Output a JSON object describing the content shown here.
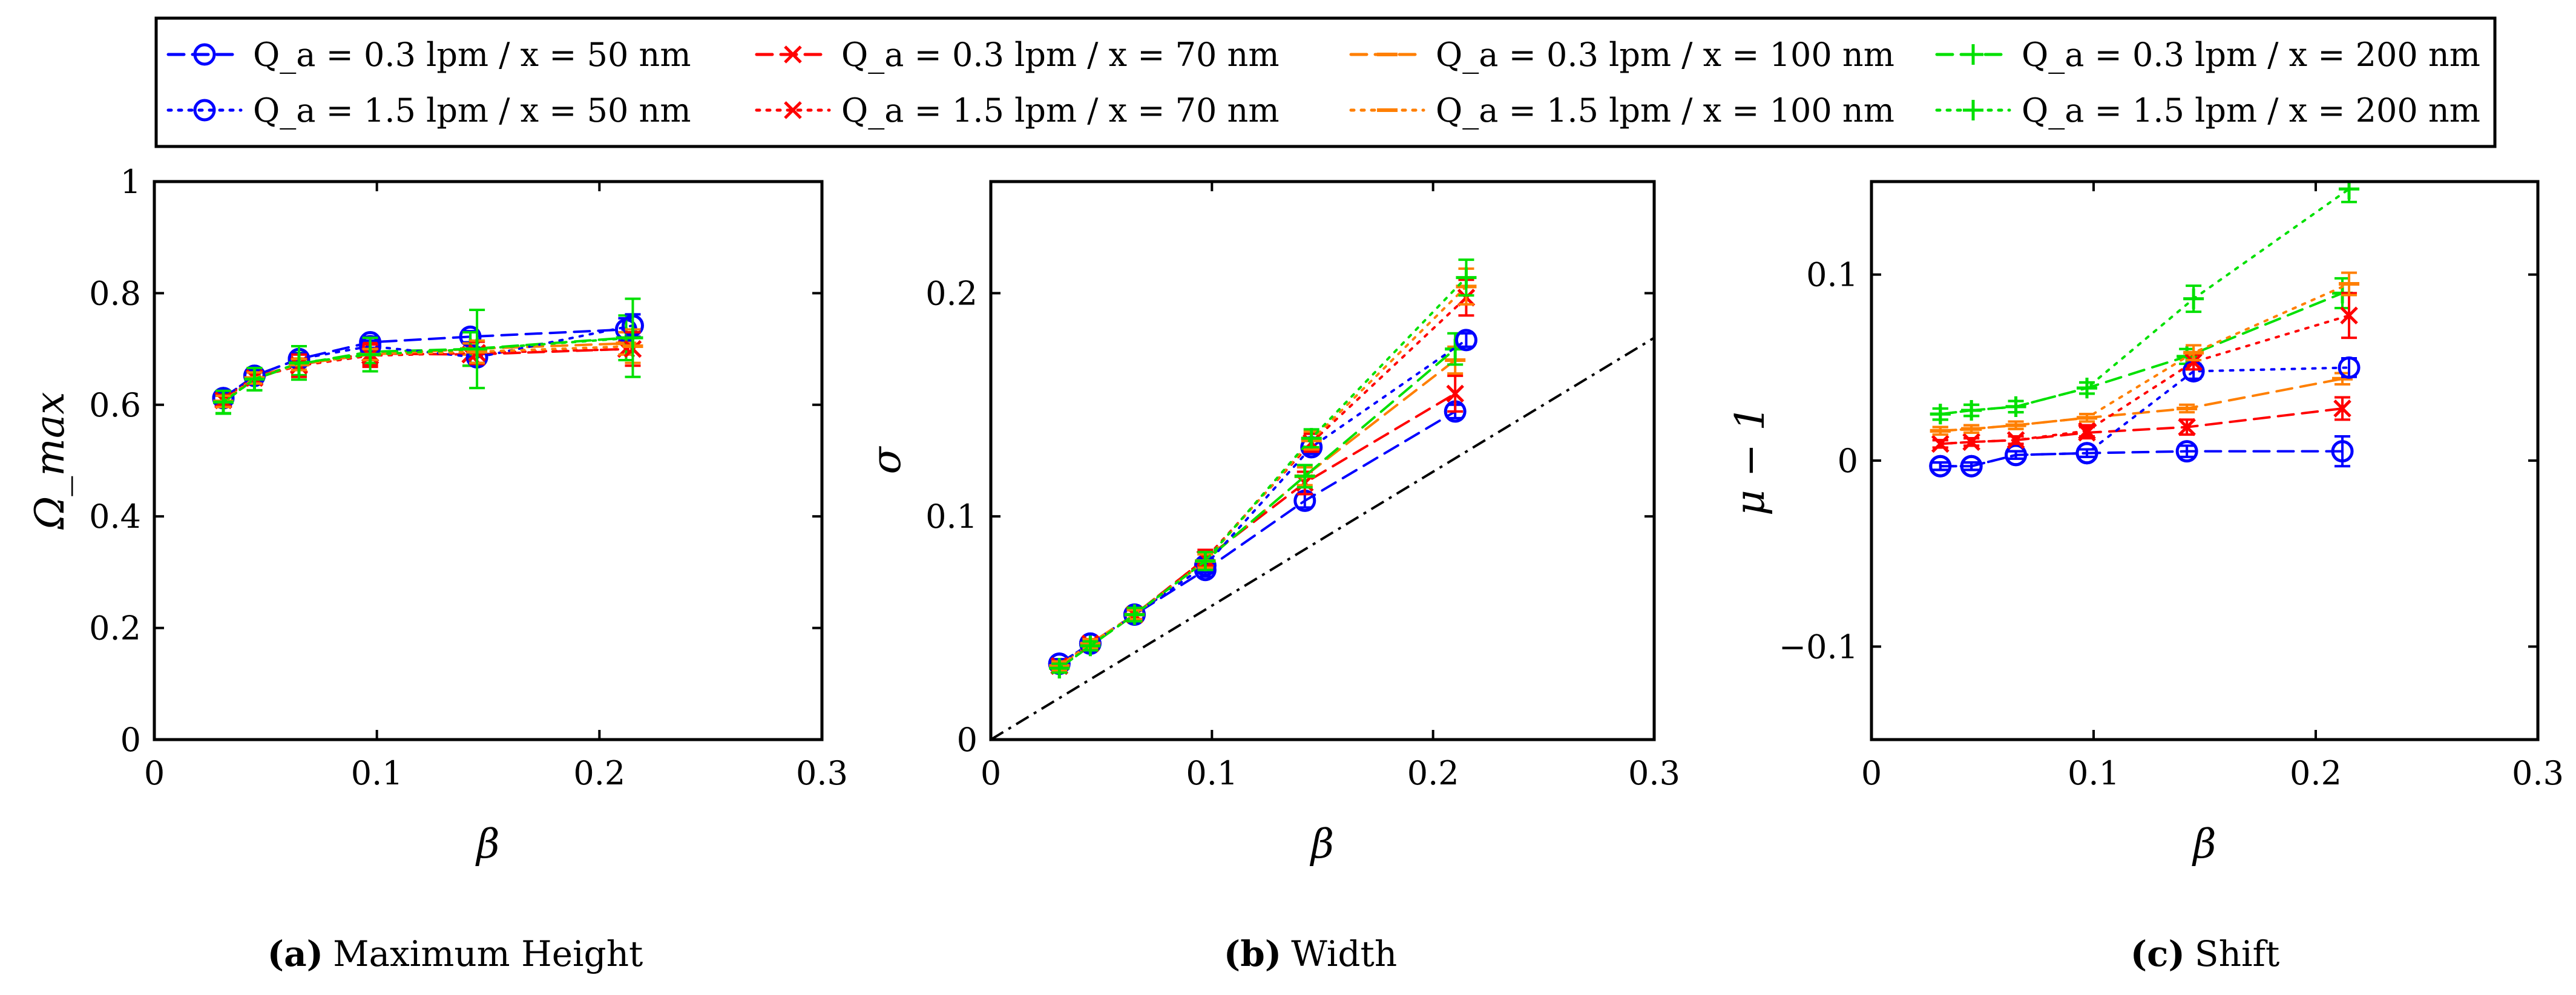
{
  "legend": {
    "entries": [
      {
        "label": "Q_a = 0.3 lpm / x = 50 nm",
        "color": "#0000ff",
        "style": "dashed",
        "marker": "circle"
      },
      {
        "label": "Q_a = 0.3 lpm / x = 70 nm",
        "color": "#ff0000",
        "style": "dashed",
        "marker": "cross"
      },
      {
        "label": "Q_a = 0.3 lpm / x = 100 nm",
        "color": "#ff7f00",
        "style": "dashed",
        "marker": "dash"
      },
      {
        "label": "Q_a = 0.3 lpm / x = 200 nm",
        "color": "#00e000",
        "style": "dashed",
        "marker": "plus"
      },
      {
        "label": "Q_a = 1.5 lpm / x = 50 nm",
        "color": "#0000ff",
        "style": "dotted",
        "marker": "circle"
      },
      {
        "label": "Q_a = 1.5 lpm / x = 70 nm",
        "color": "#ff0000",
        "style": "dotted",
        "marker": "cross"
      },
      {
        "label": "Q_a = 1.5 lpm / x = 100 nm",
        "color": "#ff7f00",
        "style": "dotted",
        "marker": "dash"
      },
      {
        "label": "Q_a = 1.5 lpm / x = 200 nm",
        "color": "#00e000",
        "style": "dotted",
        "marker": "plus"
      }
    ]
  },
  "chart_data": [
    {
      "type": "line",
      "caption_letter": "(a)",
      "caption_text": "Maximum Height",
      "xlabel": "β",
      "ylabel": "Ω_max",
      "xlim": [
        0,
        0.3
      ],
      "ylim": [
        0,
        1
      ],
      "xticks": [
        "0",
        "0.1",
        "0.2",
        "0.3"
      ],
      "xtick_values": [
        0,
        0.1,
        0.2,
        0.3
      ],
      "yticks": [
        "0",
        "0.2",
        "0.4",
        "0.6",
        "0.8",
        "1"
      ],
      "ytick_values": [
        0,
        0.2,
        0.4,
        0.6,
        0.8,
        1
      ],
      "series": [
        {
          "name": "Q_a = 0.3 lpm / x = 50 nm",
          "x": [
            0.031,
            0.045,
            0.065,
            0.097,
            0.142,
            0.212
          ],
          "y": [
            0.612,
            0.652,
            0.682,
            0.712,
            0.722,
            0.735
          ],
          "err": [
            0.01,
            0.01,
            0.01,
            0.01,
            0.01,
            0.02
          ]
        },
        {
          "name": "Q_a = 0.3 lpm / x = 70 nm",
          "x": [
            0.031,
            0.045,
            0.065,
            0.097,
            0.142,
            0.212
          ],
          "y": [
            0.61,
            0.65,
            0.672,
            0.692,
            0.69,
            0.7
          ],
          "err": [
            0.01,
            0.01,
            0.02,
            0.02,
            0.02,
            0.02
          ]
        },
        {
          "name": "Q_a = 0.3 lpm / x = 100 nm",
          "x": [
            0.031,
            0.045,
            0.065,
            0.097,
            0.142,
            0.212
          ],
          "y": [
            0.606,
            0.648,
            0.673,
            0.69,
            0.7,
            0.71
          ],
          "err": [
            0.01,
            0.01,
            0.01,
            0.01,
            0.01,
            0.02
          ]
        },
        {
          "name": "Q_a = 0.3 lpm / x = 200 nm",
          "x": [
            0.031,
            0.045,
            0.065,
            0.097,
            0.142,
            0.212
          ],
          "y": [
            0.604,
            0.646,
            0.673,
            0.695,
            0.7,
            0.72
          ],
          "err": [
            0.02,
            0.02,
            0.02,
            0.02,
            0.03,
            0.04
          ]
        },
        {
          "name": "Q_a = 1.5 lpm / x = 50 nm",
          "x": [
            0.031,
            0.045,
            0.065,
            0.097,
            0.145,
            0.215
          ],
          "y": [
            0.612,
            0.652,
            0.682,
            0.705,
            0.685,
            0.742
          ],
          "err": [
            0.01,
            0.01,
            0.01,
            0.01,
            0.01,
            0.02
          ]
        },
        {
          "name": "Q_a = 1.5 lpm / x = 70 nm",
          "x": [
            0.031,
            0.045,
            0.065,
            0.097,
            0.145,
            0.215
          ],
          "y": [
            0.608,
            0.648,
            0.67,
            0.688,
            0.693,
            0.7
          ],
          "err": [
            0.01,
            0.01,
            0.02,
            0.02,
            0.02,
            0.03
          ]
        },
        {
          "name": "Q_a = 1.5 lpm / x = 100 nm",
          "x": [
            0.031,
            0.045,
            0.065,
            0.097,
            0.145,
            0.215
          ],
          "y": [
            0.606,
            0.648,
            0.672,
            0.69,
            0.695,
            0.705
          ],
          "err": [
            0.01,
            0.01,
            0.01,
            0.01,
            0.02,
            0.03
          ]
        },
        {
          "name": "Q_a = 1.5 lpm / x = 200 nm",
          "x": [
            0.031,
            0.045,
            0.065,
            0.097,
            0.145,
            0.215
          ],
          "y": [
            0.605,
            0.646,
            0.675,
            0.69,
            0.7,
            0.72
          ],
          "err": [
            0.02,
            0.02,
            0.03,
            0.03,
            0.07,
            0.07
          ]
        }
      ]
    },
    {
      "type": "line",
      "caption_letter": "(b)",
      "caption_text": "Width",
      "xlabel": "β",
      "ylabel": "σ",
      "xlim": [
        0,
        0.3
      ],
      "ylim": [
        0,
        0.25
      ],
      "xticks": [
        "0",
        "0.1",
        "0.2",
        "0.3"
      ],
      "xtick_values": [
        0,
        0.1,
        0.2,
        0.3
      ],
      "yticks": [
        "0",
        "0.1",
        "0.2"
      ],
      "ytick_values": [
        0,
        0.1,
        0.2
      ],
      "reference_line": {
        "x": [
          0,
          0.3
        ],
        "y": [
          0,
          0.18
        ],
        "style": "dashdot",
        "color": "#000000"
      },
      "series": [
        {
          "name": "Q_a = 0.3 lpm / x = 50 nm",
          "x": [
            0.031,
            0.045,
            0.065,
            0.097,
            0.142,
            0.21
          ],
          "y": [
            0.034,
            0.043,
            0.056,
            0.076,
            0.107,
            0.147
          ],
          "err": [
            0.002,
            0.002,
            0.002,
            0.003,
            0.003,
            0.003
          ]
        },
        {
          "name": "Q_a = 0.3 lpm / x = 70 nm",
          "x": [
            0.031,
            0.045,
            0.065,
            0.097,
            0.142,
            0.21
          ],
          "y": [
            0.033,
            0.043,
            0.056,
            0.081,
            0.115,
            0.155
          ],
          "err": [
            0.002,
            0.002,
            0.002,
            0.004,
            0.005,
            0.008
          ]
        },
        {
          "name": "Q_a = 0.3 lpm / x = 100 nm",
          "x": [
            0.031,
            0.045,
            0.065,
            0.097,
            0.142,
            0.21
          ],
          "y": [
            0.033,
            0.043,
            0.056,
            0.08,
            0.118,
            0.17
          ],
          "err": [
            0.002,
            0.002,
            0.002,
            0.003,
            0.004,
            0.006
          ]
        },
        {
          "name": "Q_a = 0.3 lpm / x = 200 nm",
          "x": [
            0.031,
            0.045,
            0.065,
            0.097,
            0.142,
            0.21
          ],
          "y": [
            0.032,
            0.042,
            0.056,
            0.08,
            0.118,
            0.175
          ],
          "err": [
            0.002,
            0.002,
            0.003,
            0.004,
            0.005,
            0.007
          ]
        },
        {
          "name": "Q_a = 1.5 lpm / x = 50 nm",
          "x": [
            0.031,
            0.045,
            0.065,
            0.097,
            0.145,
            0.215
          ],
          "y": [
            0.034,
            0.043,
            0.056,
            0.078,
            0.131,
            0.179
          ],
          "err": [
            0.002,
            0.002,
            0.002,
            0.003,
            0.003,
            0.003
          ]
        },
        {
          "name": "Q_a = 1.5 lpm / x = 70 nm",
          "x": [
            0.031,
            0.045,
            0.065,
            0.097,
            0.145,
            0.215
          ],
          "y": [
            0.033,
            0.043,
            0.056,
            0.081,
            0.133,
            0.198
          ],
          "err": [
            0.002,
            0.002,
            0.002,
            0.003,
            0.004,
            0.008
          ]
        },
        {
          "name": "Q_a = 1.5 lpm / x = 100 nm",
          "x": [
            0.031,
            0.045,
            0.065,
            0.097,
            0.145,
            0.215
          ],
          "y": [
            0.033,
            0.043,
            0.056,
            0.08,
            0.134,
            0.203
          ],
          "err": [
            0.002,
            0.002,
            0.002,
            0.003,
            0.004,
            0.008
          ]
        },
        {
          "name": "Q_a = 1.5 lpm / x = 200 nm",
          "x": [
            0.031,
            0.045,
            0.065,
            0.097,
            0.145,
            0.215
          ],
          "y": [
            0.032,
            0.042,
            0.056,
            0.08,
            0.135,
            0.207
          ],
          "err": [
            0.002,
            0.002,
            0.003,
            0.004,
            0.004,
            0.008
          ]
        }
      ]
    },
    {
      "type": "line",
      "caption_letter": "(c)",
      "caption_text": "Shift",
      "xlabel": "β",
      "ylabel": "μ − 1",
      "xlim": [
        0,
        0.3
      ],
      "ylim": [
        -0.15,
        0.15
      ],
      "xticks": [
        "0",
        "0.1",
        "0.2",
        "0.3"
      ],
      "xtick_values": [
        0,
        0.1,
        0.2,
        0.3
      ],
      "yticks": [
        "−0.1",
        "0",
        "0.1"
      ],
      "ytick_values": [
        -0.1,
        0,
        0.1
      ],
      "series": [
        {
          "name": "Q_a = 0.3 lpm / x = 50 nm",
          "x": [
            0.031,
            0.045,
            0.065,
            0.097,
            0.142,
            0.212
          ],
          "y": [
            -0.003,
            -0.003,
            0.003,
            0.004,
            0.005,
            0.005
          ],
          "err": [
            0.002,
            0.002,
            0.002,
            0.002,
            0.003,
            0.008
          ]
        },
        {
          "name": "Q_a = 0.3 lpm / x = 70 nm",
          "x": [
            0.031,
            0.045,
            0.065,
            0.097,
            0.142,
            0.212
          ],
          "y": [
            0.009,
            0.01,
            0.011,
            0.015,
            0.018,
            0.028
          ],
          "err": [
            0.002,
            0.002,
            0.002,
            0.003,
            0.004,
            0.006
          ]
        },
        {
          "name": "Q_a = 0.3 lpm / x = 100 nm",
          "x": [
            0.031,
            0.045,
            0.065,
            0.097,
            0.142,
            0.212
          ],
          "y": [
            0.016,
            0.017,
            0.019,
            0.023,
            0.028,
            0.044
          ],
          "err": [
            0.002,
            0.002,
            0.002,
            0.002,
            0.002,
            0.003
          ]
        },
        {
          "name": "Q_a = 0.3 lpm / x = 200 nm",
          "x": [
            0.031,
            0.045,
            0.065,
            0.097,
            0.142,
            0.212
          ],
          "y": [
            0.025,
            0.027,
            0.029,
            0.039,
            0.056,
            0.09
          ],
          "err": [
            0.003,
            0.003,
            0.003,
            0.003,
            0.004,
            0.008
          ]
        },
        {
          "name": "Q_a = 1.5 lpm / x = 50 nm",
          "x": [
            0.031,
            0.045,
            0.065,
            0.097,
            0.145,
            0.215
          ],
          "y": [
            -0.003,
            -0.003,
            0.003,
            0.004,
            0.048,
            0.05
          ],
          "err": [
            0.002,
            0.002,
            0.002,
            0.002,
            0.004,
            0.005
          ]
        },
        {
          "name": "Q_a = 1.5 lpm / x = 70 nm",
          "x": [
            0.031,
            0.045,
            0.065,
            0.097,
            0.145,
            0.215
          ],
          "y": [
            0.009,
            0.01,
            0.011,
            0.016,
            0.053,
            0.078
          ],
          "err": [
            0.002,
            0.002,
            0.002,
            0.003,
            0.004,
            0.012
          ]
        },
        {
          "name": "Q_a = 1.5 lpm / x = 100 nm",
          "x": [
            0.031,
            0.045,
            0.065,
            0.097,
            0.145,
            0.215
          ],
          "y": [
            0.016,
            0.017,
            0.019,
            0.023,
            0.058,
            0.095
          ],
          "err": [
            0.002,
            0.002,
            0.002,
            0.002,
            0.004,
            0.006
          ]
        },
        {
          "name": "Q_a = 1.5 lpm / x = 200 nm",
          "x": [
            0.031,
            0.045,
            0.065,
            0.097,
            0.145,
            0.215
          ],
          "y": [
            0.025,
            0.027,
            0.029,
            0.039,
            0.087,
            0.146
          ],
          "err": [
            0.003,
            0.003,
            0.003,
            0.003,
            0.007,
            0.007
          ]
        }
      ]
    }
  ]
}
